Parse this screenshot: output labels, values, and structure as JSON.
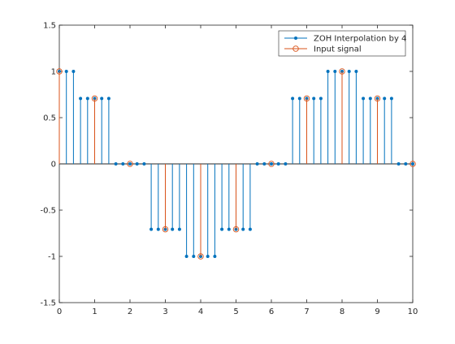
{
  "chart_data": {
    "type": "line",
    "subtype": "stem",
    "xlim": [
      0,
      10
    ],
    "ylim": [
      -1.5,
      1.5
    ],
    "x_ticks": [
      0,
      1,
      2,
      3,
      4,
      5,
      6,
      7,
      8,
      9,
      10
    ],
    "y_ticks": [
      -1.5,
      -1,
      -0.5,
      0,
      0.5,
      1,
      1.5
    ],
    "x_tick_labels": [
      "0",
      "1",
      "2",
      "3",
      "4",
      "5",
      "6",
      "7",
      "8",
      "9",
      "10"
    ],
    "y_tick_labels": [
      "-1.5",
      "-1",
      "-0.5",
      "0",
      "0.5",
      "1",
      "1.5"
    ],
    "grid": false,
    "legend_position": "top-right",
    "series": [
      {
        "name": "ZOH Interpolation by 4",
        "color": "#0072BD",
        "marker": "filled-dot",
        "x": [
          0,
          0.2,
          0.4,
          0.6,
          0.8,
          1,
          1.2,
          1.4,
          1.6,
          1.8,
          2,
          2.2,
          2.4,
          2.6,
          2.8,
          3,
          3.2,
          3.4,
          3.6,
          3.8,
          4,
          4.2,
          4.4,
          4.6,
          4.8,
          5,
          5.2,
          5.4,
          5.6,
          5.8,
          6,
          6.2,
          6.4,
          6.6,
          6.8,
          7,
          7.2,
          7.4,
          7.6,
          7.8,
          8,
          8.2,
          8.4,
          8.6,
          8.8,
          9,
          9.2,
          9.4,
          9.6,
          9.8,
          10
        ],
        "y": [
          1,
          1,
          1,
          0.7071,
          0.7071,
          0.7071,
          0.7071,
          0.7071,
          0,
          0,
          0,
          0,
          0,
          -0.7071,
          -0.7071,
          -0.7071,
          -0.7071,
          -0.7071,
          -1,
          -1,
          -1,
          -1,
          -1,
          -0.7071,
          -0.7071,
          -0.7071,
          -0.7071,
          -0.7071,
          0,
          0,
          0,
          0,
          0,
          0.7071,
          0.7071,
          0.7071,
          0.7071,
          0.7071,
          1,
          1,
          1,
          1,
          1,
          0.7071,
          0.7071,
          0.7071,
          0.7071,
          0.7071,
          0,
          0,
          0
        ]
      },
      {
        "name": "Input signal",
        "color": "#D95319",
        "marker": "open-circle",
        "x": [
          0,
          1,
          2,
          3,
          4,
          5,
          6,
          7,
          8,
          9,
          10
        ],
        "y": [
          1,
          0.7071,
          0,
          -0.7071,
          -1,
          -0.7071,
          0,
          0.7071,
          1,
          0.7071,
          0
        ]
      }
    ]
  }
}
